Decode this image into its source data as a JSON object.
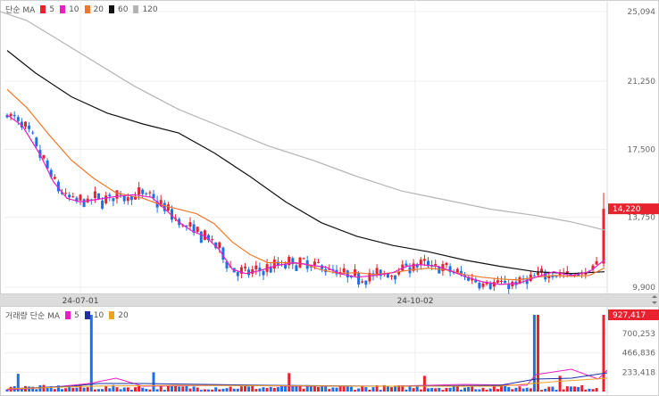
{
  "price_legend": {
    "prefix": "단순 MA",
    "items": [
      {
        "label": "5",
        "color": "#e8222e"
      },
      {
        "label": "10",
        "color": "#e91ec4"
      },
      {
        "label": "20",
        "color": "#f0772a"
      },
      {
        "label": "60",
        "color": "#111111"
      },
      {
        "label": "120",
        "color": "#b4b4b4"
      }
    ]
  },
  "volume_legend": {
    "prefix": "거래량 단순 MA",
    "items": [
      {
        "label": "5",
        "color": "#e91ec4"
      },
      {
        "label": "10",
        "color": "#1d2fa3"
      },
      {
        "label": "20",
        "color": "#f0a21e"
      }
    ]
  },
  "chart_data": {
    "type": "candlestick",
    "x_tick_labels": [
      "24-07-01",
      "24-10-02"
    ],
    "price_axis_ticks": [
      "25,094",
      "21,250",
      "17,500",
      "13,750",
      "9,900"
    ],
    "price_axis_values": [
      25094,
      21250,
      17500,
      13750,
      9900
    ],
    "current_price_label": "14,220",
    "current_price": 14220,
    "volume_axis_ticks": [
      "700,253",
      "466,836",
      "233,418"
    ],
    "volume_axis_values": [
      700253,
      466836,
      233418
    ],
    "current_volume_label": "927,417",
    "current_volume": 927417,
    "up_color": "#e8222e",
    "down_color": "#1f6fe6",
    "candles": [],
    "ma_series": [
      {
        "name": "120",
        "color": "#b4b4b4",
        "points": [
          [
            0,
            25100
          ],
          [
            30,
            24600
          ],
          [
            60,
            23700
          ],
          [
            100,
            22500
          ],
          [
            150,
            21000
          ],
          [
            200,
            19700
          ],
          [
            250,
            18700
          ],
          [
            300,
            17700
          ],
          [
            350,
            16900
          ],
          [
            400,
            16000
          ],
          [
            450,
            15200
          ],
          [
            500,
            14700
          ],
          [
            550,
            14200
          ],
          [
            600,
            13850
          ],
          [
            640,
            13500
          ],
          [
            677,
            13050
          ]
        ]
      },
      {
        "name": "60",
        "color": "#111111",
        "points": [
          [
            8,
            22950
          ],
          [
            40,
            21700
          ],
          [
            80,
            20400
          ],
          [
            120,
            19500
          ],
          [
            160,
            18900
          ],
          [
            200,
            18400
          ],
          [
            240,
            17300
          ],
          [
            280,
            16000
          ],
          [
            320,
            14600
          ],
          [
            360,
            13450
          ],
          [
            400,
            12700
          ],
          [
            440,
            12200
          ],
          [
            480,
            11850
          ],
          [
            520,
            11400
          ],
          [
            560,
            11050
          ],
          [
            600,
            10750
          ],
          [
            640,
            10650
          ],
          [
            677,
            10750
          ]
        ]
      },
      {
        "name": "20",
        "color": "#f0772a",
        "points": [
          [
            8,
            20800
          ],
          [
            30,
            19800
          ],
          [
            55,
            18300
          ],
          [
            80,
            16900
          ],
          [
            105,
            15900
          ],
          [
            130,
            15100
          ],
          [
            160,
            14800
          ],
          [
            180,
            14450
          ],
          [
            200,
            14200
          ],
          [
            220,
            13950
          ],
          [
            240,
            13400
          ],
          [
            260,
            12400
          ],
          [
            280,
            11700
          ],
          [
            300,
            11250
          ],
          [
            320,
            11250
          ],
          [
            340,
            11200
          ],
          [
            360,
            10850
          ],
          [
            380,
            10650
          ],
          [
            400,
            10700
          ],
          [
            420,
            10600
          ],
          [
            440,
            10700
          ],
          [
            460,
            10850
          ],
          [
            480,
            10950
          ],
          [
            500,
            10850
          ],
          [
            520,
            10600
          ],
          [
            540,
            10450
          ],
          [
            560,
            10350
          ],
          [
            580,
            10300
          ],
          [
            600,
            10450
          ],
          [
            620,
            10550
          ],
          [
            640,
            10500
          ],
          [
            660,
            10550
          ],
          [
            677,
            10950
          ]
        ]
      },
      {
        "name": "10",
        "color": "#e91ec4",
        "points": [
          [
            8,
            19400
          ],
          [
            25,
            18800
          ],
          [
            45,
            17200
          ],
          [
            60,
            15700
          ],
          [
            75,
            14800
          ],
          [
            90,
            14600
          ],
          [
            110,
            14750
          ],
          [
            130,
            14900
          ],
          [
            150,
            15000
          ],
          [
            170,
            14850
          ],
          [
            185,
            14200
          ],
          [
            200,
            13500
          ],
          [
            215,
            13000
          ],
          [
            230,
            12700
          ],
          [
            245,
            12000
          ],
          [
            260,
            10900
          ],
          [
            275,
            10650
          ],
          [
            290,
            10800
          ],
          [
            310,
            11100
          ],
          [
            330,
            11250
          ],
          [
            350,
            11100
          ],
          [
            365,
            11000
          ],
          [
            380,
            10650
          ],
          [
            400,
            10450
          ],
          [
            420,
            10550
          ],
          [
            440,
            10700
          ],
          [
            455,
            11050
          ],
          [
            470,
            11150
          ],
          [
            490,
            11050
          ],
          [
            505,
            10800
          ],
          [
            520,
            10500
          ],
          [
            540,
            10200
          ],
          [
            560,
            10050
          ],
          [
            580,
            10100
          ],
          [
            600,
            10450
          ],
          [
            620,
            10750
          ],
          [
            640,
            10550
          ],
          [
            660,
            10750
          ],
          [
            677,
            11400
          ]
        ]
      }
    ],
    "volume_ma_series": [
      {
        "name": "5",
        "color": "#e91ec4"
      },
      {
        "name": "10",
        "color": "#1d2fa3"
      },
      {
        "name": "20",
        "color": "#f0a21e"
      }
    ]
  }
}
